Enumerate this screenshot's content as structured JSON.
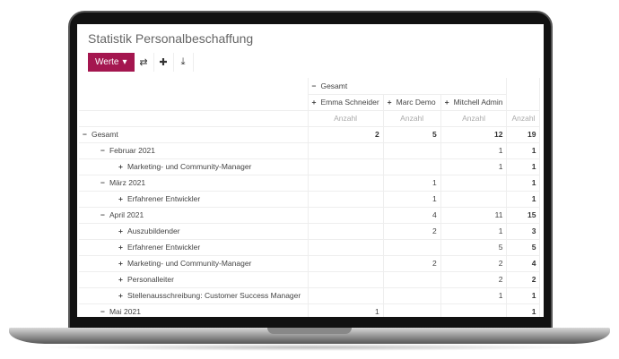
{
  "title": "Statistik Personalbeschaffung",
  "toolbar": {
    "measures_label": "Werte",
    "icons": [
      "flip-axis-icon",
      "expand-all-icon",
      "download-icon"
    ]
  },
  "accent": "#a4164f",
  "columns": {
    "group_label": "Gesamt",
    "people": [
      "Emma Schneider",
      "Marc Demo",
      "Mitchell Admin"
    ],
    "measure": "Anzahl"
  },
  "rows": [
    {
      "label": "Gesamt",
      "level": 0,
      "sym": "−",
      "values": [
        "2",
        "5",
        "12"
      ],
      "total": "19"
    },
    {
      "label": "Februar 2021",
      "level": 1,
      "sym": "−",
      "values": [
        "",
        "",
        "1"
      ],
      "total": "1"
    },
    {
      "label": "Marketing- und Community-Manager",
      "level": 2,
      "sym": "+",
      "values": [
        "",
        "",
        "1"
      ],
      "total": "1"
    },
    {
      "label": "März 2021",
      "level": 1,
      "sym": "−",
      "values": [
        "",
        "1",
        ""
      ],
      "total": "1"
    },
    {
      "label": "Erfahrener Entwickler",
      "level": 2,
      "sym": "+",
      "values": [
        "",
        "1",
        ""
      ],
      "total": "1"
    },
    {
      "label": "April 2021",
      "level": 1,
      "sym": "−",
      "values": [
        "",
        "4",
        "11"
      ],
      "total": "15"
    },
    {
      "label": "Auszubildender",
      "level": 2,
      "sym": "+",
      "values": [
        "",
        "2",
        "1"
      ],
      "total": "3"
    },
    {
      "label": "Erfahrener Entwickler",
      "level": 2,
      "sym": "+",
      "values": [
        "",
        "",
        "5"
      ],
      "total": "5"
    },
    {
      "label": "Marketing- und Community-Manager",
      "level": 2,
      "sym": "+",
      "values": [
        "",
        "2",
        "2"
      ],
      "total": "4"
    },
    {
      "label": "Personalleiter",
      "level": 2,
      "sym": "+",
      "values": [
        "",
        "",
        "2"
      ],
      "total": "2"
    },
    {
      "label": "Stellenausschreibung: Customer Success Manager",
      "level": 2,
      "sym": "+",
      "values": [
        "",
        "",
        "1"
      ],
      "total": "1"
    },
    {
      "label": "Mai 2021",
      "level": 1,
      "sym": "−",
      "values": [
        "1",
        "",
        ""
      ],
      "total": "1"
    }
  ]
}
